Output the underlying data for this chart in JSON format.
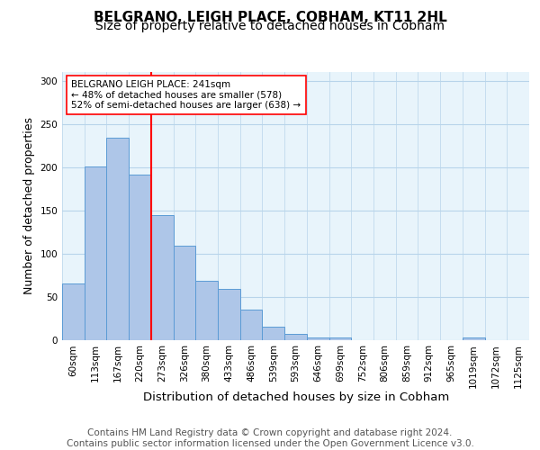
{
  "title": "BELGRANO, LEIGH PLACE, COBHAM, KT11 2HL",
  "subtitle": "Size of property relative to detached houses in Cobham",
  "xlabel": "Distribution of detached houses by size in Cobham",
  "ylabel": "Number of detached properties",
  "categories": [
    "60sqm",
    "113sqm",
    "167sqm",
    "220sqm",
    "273sqm",
    "326sqm",
    "380sqm",
    "433sqm",
    "486sqm",
    "539sqm",
    "593sqm",
    "646sqm",
    "699sqm",
    "752sqm",
    "806sqm",
    "859sqm",
    "912sqm",
    "965sqm",
    "1019sqm",
    "1072sqm",
    "1125sqm"
  ],
  "bar_heights": [
    65,
    201,
    234,
    191,
    144,
    109,
    68,
    59,
    35,
    15,
    7,
    3,
    3,
    0,
    0,
    0,
    0,
    0,
    3,
    0,
    0
  ],
  "bar_color": "#aec6e8",
  "bar_edge_color": "#5b9bd5",
  "vline_color": "red",
  "annotation_text": "BELGRANO LEIGH PLACE: 241sqm\n← 48% of detached houses are smaller (578)\n52% of semi-detached houses are larger (638) →",
  "ylim": [
    0,
    310
  ],
  "yticks": [
    0,
    50,
    100,
    150,
    200,
    250,
    300
  ],
  "footer": "Contains HM Land Registry data © Crown copyright and database right 2024.\nContains public sector information licensed under the Open Government Licence v3.0.",
  "bg_color": "#e8f4fb",
  "grid_color": "#b8d4ea",
  "title_fontsize": 11,
  "subtitle_fontsize": 10,
  "ylabel_fontsize": 9,
  "xlabel_fontsize": 9.5,
  "tick_fontsize": 7.5,
  "footer_fontsize": 7.5
}
